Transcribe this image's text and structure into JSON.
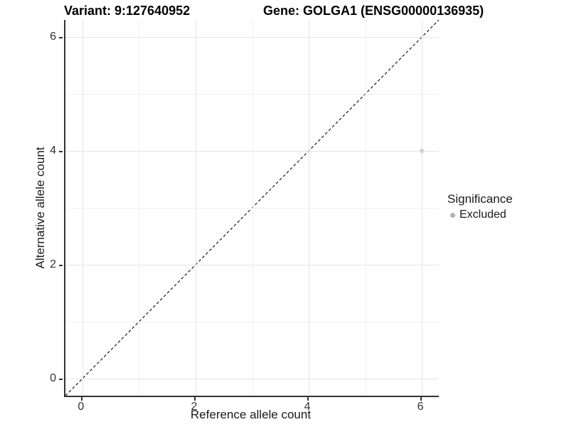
{
  "titles": {
    "variant": "Variant: 9:127640952",
    "gene": "Gene: GOLGA1 (ENSG00000136935)"
  },
  "chart_data": {
    "type": "scatter",
    "title_variant": "Variant: 9:127640952",
    "title_gene": "Gene: GOLGA1 (ENSG00000136935)",
    "xlabel": "Reference allele count",
    "ylabel": "Alternative allele count",
    "xlim": [
      -0.3,
      6.3
    ],
    "ylim": [
      -0.3,
      6.3
    ],
    "x_ticks": [
      0,
      2,
      4,
      6
    ],
    "y_ticks": [
      0,
      2,
      4,
      6
    ],
    "x_minor_gridlines": [
      1,
      3,
      5
    ],
    "y_minor_gridlines": [
      1,
      3,
      5
    ],
    "grid": true,
    "points": [
      {
        "x": 6,
        "y": 4,
        "significance": "Excluded",
        "color": "#b3b3b3"
      }
    ],
    "reference_line": {
      "slope": 1,
      "intercept": 0,
      "style": "dashed",
      "color": "#1a1a1a"
    },
    "legend": {
      "title": "Significance",
      "position": "right",
      "items": [
        {
          "label": "Excluded",
          "color": "#b3b3b3"
        }
      ]
    }
  },
  "colors": {
    "background": "#ffffff",
    "grid_major": "#e4e4e4",
    "grid_minor": "#f0f0f0",
    "axis_line": "#333333",
    "tick_text": "#333333",
    "point": "#b3b3b3"
  }
}
